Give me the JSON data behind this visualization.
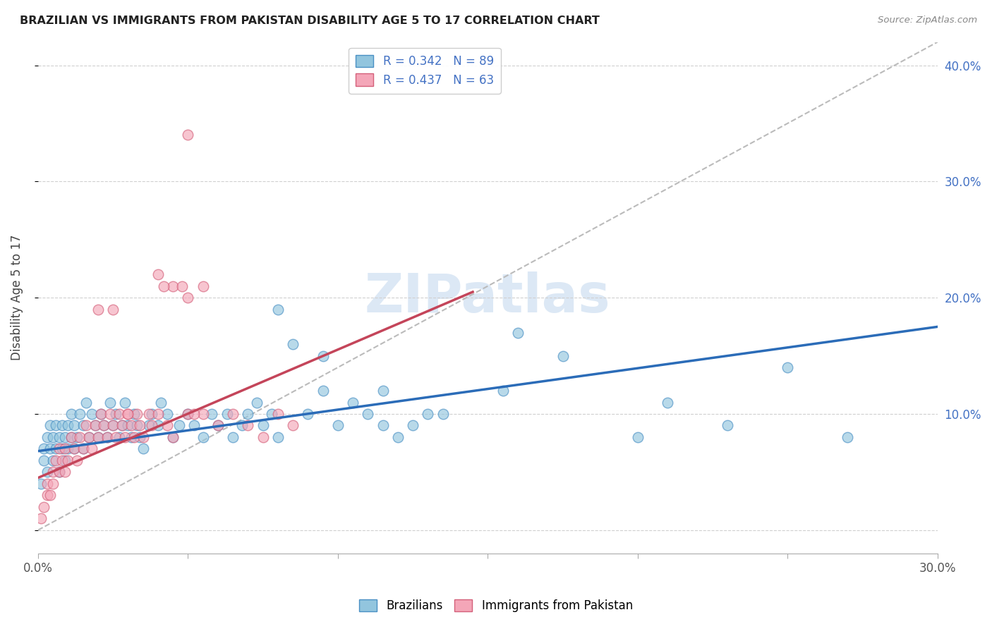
{
  "title": "BRAZILIAN VS IMMIGRANTS FROM PAKISTAN DISABILITY AGE 5 TO 17 CORRELATION CHART",
  "source": "Source: ZipAtlas.com",
  "ylabel": "Disability Age 5 to 17",
  "xlim": [
    0.0,
    0.3
  ],
  "ylim": [
    -0.02,
    0.42
  ],
  "xticks": [
    0.0,
    0.05,
    0.1,
    0.15,
    0.2,
    0.25,
    0.3
  ],
  "yticks": [
    0.0,
    0.1,
    0.2,
    0.3,
    0.4
  ],
  "right_ytick_labels": [
    "",
    "10.0%",
    "20.0%",
    "30.0%",
    "40.0%"
  ],
  "blue_R": 0.342,
  "blue_N": 89,
  "pink_R": 0.437,
  "pink_N": 63,
  "blue_color": "#92c5de",
  "pink_color": "#f4a6b8",
  "blue_edge_color": "#4a90c4",
  "pink_edge_color": "#d4607a",
  "blue_line_color": "#2b6cb8",
  "pink_line_color": "#c4455a",
  "diag_color": "#bbbbbb",
  "watermark": "ZIPatlas",
  "legend_label_blue": "Brazilians",
  "legend_label_pink": "Immigrants from Pakistan",
  "blue_R_color": "#4472c4",
  "pink_R_color": "#c4455a",
  "right_label_color": "#4472c4",
  "blue_trend_start_x": 0.0,
  "blue_trend_end_x": 0.3,
  "blue_trend_start_y": 0.068,
  "blue_trend_end_y": 0.175,
  "pink_trend_start_x": 0.0,
  "pink_trend_end_x": 0.145,
  "pink_trend_start_y": 0.045,
  "pink_trend_end_y": 0.205,
  "blue_scatter_x": [
    0.001,
    0.002,
    0.002,
    0.003,
    0.003,
    0.004,
    0.004,
    0.005,
    0.005,
    0.006,
    0.006,
    0.007,
    0.007,
    0.008,
    0.008,
    0.009,
    0.009,
    0.01,
    0.01,
    0.011,
    0.011,
    0.012,
    0.012,
    0.013,
    0.014,
    0.015,
    0.015,
    0.016,
    0.017,
    0.018,
    0.019,
    0.02,
    0.021,
    0.022,
    0.023,
    0.024,
    0.025,
    0.026,
    0.027,
    0.028,
    0.029,
    0.03,
    0.031,
    0.032,
    0.033,
    0.034,
    0.035,
    0.037,
    0.038,
    0.04,
    0.041,
    0.043,
    0.045,
    0.047,
    0.05,
    0.052,
    0.055,
    0.058,
    0.06,
    0.063,
    0.065,
    0.068,
    0.07,
    0.073,
    0.075,
    0.078,
    0.08,
    0.085,
    0.09,
    0.095,
    0.1,
    0.105,
    0.11,
    0.115,
    0.12,
    0.125,
    0.13,
    0.155,
    0.175,
    0.2,
    0.21,
    0.23,
    0.25,
    0.08,
    0.095,
    0.115,
    0.135,
    0.16,
    0.27
  ],
  "blue_scatter_y": [
    0.04,
    0.06,
    0.07,
    0.05,
    0.08,
    0.07,
    0.09,
    0.06,
    0.08,
    0.07,
    0.09,
    0.05,
    0.08,
    0.07,
    0.09,
    0.06,
    0.08,
    0.07,
    0.09,
    0.08,
    0.1,
    0.07,
    0.09,
    0.08,
    0.1,
    0.07,
    0.09,
    0.11,
    0.08,
    0.1,
    0.09,
    0.08,
    0.1,
    0.09,
    0.08,
    0.11,
    0.09,
    0.1,
    0.08,
    0.09,
    0.11,
    0.09,
    0.08,
    0.1,
    0.09,
    0.08,
    0.07,
    0.09,
    0.1,
    0.09,
    0.11,
    0.1,
    0.08,
    0.09,
    0.1,
    0.09,
    0.08,
    0.1,
    0.09,
    0.1,
    0.08,
    0.09,
    0.1,
    0.11,
    0.09,
    0.1,
    0.08,
    0.16,
    0.1,
    0.12,
    0.09,
    0.11,
    0.1,
    0.09,
    0.08,
    0.09,
    0.1,
    0.12,
    0.15,
    0.08,
    0.11,
    0.09,
    0.14,
    0.19,
    0.15,
    0.12,
    0.1,
    0.17,
    0.08
  ],
  "pink_scatter_x": [
    0.001,
    0.002,
    0.003,
    0.003,
    0.004,
    0.005,
    0.005,
    0.006,
    0.007,
    0.007,
    0.008,
    0.009,
    0.009,
    0.01,
    0.011,
    0.012,
    0.013,
    0.014,
    0.015,
    0.016,
    0.017,
    0.018,
    0.019,
    0.02,
    0.021,
    0.022,
    0.023,
    0.024,
    0.025,
    0.026,
    0.027,
    0.028,
    0.029,
    0.03,
    0.031,
    0.032,
    0.033,
    0.034,
    0.035,
    0.037,
    0.038,
    0.04,
    0.043,
    0.045,
    0.05,
    0.055,
    0.06,
    0.065,
    0.07,
    0.075,
    0.08,
    0.085,
    0.04,
    0.045,
    0.05,
    0.055,
    0.042,
    0.048,
    0.052,
    0.02,
    0.025,
    0.03,
    0.05
  ],
  "pink_scatter_y": [
    0.01,
    0.02,
    0.03,
    0.04,
    0.03,
    0.05,
    0.04,
    0.06,
    0.05,
    0.07,
    0.06,
    0.05,
    0.07,
    0.06,
    0.08,
    0.07,
    0.06,
    0.08,
    0.07,
    0.09,
    0.08,
    0.07,
    0.09,
    0.08,
    0.1,
    0.09,
    0.08,
    0.1,
    0.09,
    0.08,
    0.1,
    0.09,
    0.08,
    0.1,
    0.09,
    0.08,
    0.1,
    0.09,
    0.08,
    0.1,
    0.09,
    0.1,
    0.09,
    0.08,
    0.1,
    0.1,
    0.09,
    0.1,
    0.09,
    0.08,
    0.1,
    0.09,
    0.22,
    0.21,
    0.2,
    0.21,
    0.21,
    0.21,
    0.1,
    0.19,
    0.19,
    0.1,
    0.34
  ]
}
